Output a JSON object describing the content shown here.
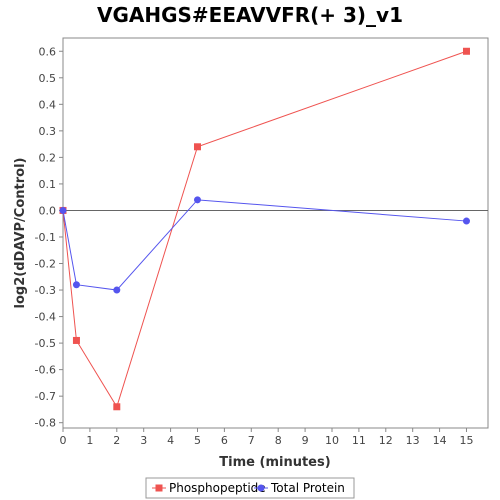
{
  "chart_data": {
    "type": "line",
    "title": "VGAHGS#EEAVVFR(+ 3)_v1",
    "xlabel": "Time (minutes)",
    "ylabel": "log2(dDAVP/Control)",
    "xlim": [
      0,
      15.8
    ],
    "ylim": [
      -0.82,
      0.65
    ],
    "x_ticks": [
      0,
      1,
      2,
      3,
      4,
      5,
      6,
      7,
      8,
      9,
      10,
      11,
      12,
      13,
      14,
      15
    ],
    "y_ticks": [
      -0.8,
      -0.7,
      -0.6,
      -0.5,
      -0.4,
      -0.3,
      -0.2,
      -0.1,
      0.0,
      0.1,
      0.2,
      0.3,
      0.4,
      0.5,
      0.6
    ],
    "zero_line": true,
    "grid": false,
    "legend_position": "bottom",
    "series": [
      {
        "name": "Phosphopeptide",
        "color": "#ef5350",
        "marker": "square",
        "x": [
          0,
          0.5,
          2,
          5,
          15
        ],
        "y": [
          0.0,
          -0.49,
          -0.74,
          0.24,
          0.6
        ]
      },
      {
        "name": "Total Protein",
        "color": "#5555ee",
        "marker": "circle",
        "x": [
          0,
          0.5,
          2,
          5,
          15
        ],
        "y": [
          0.0,
          -0.28,
          -0.3,
          0.04,
          -0.04
        ]
      }
    ]
  }
}
